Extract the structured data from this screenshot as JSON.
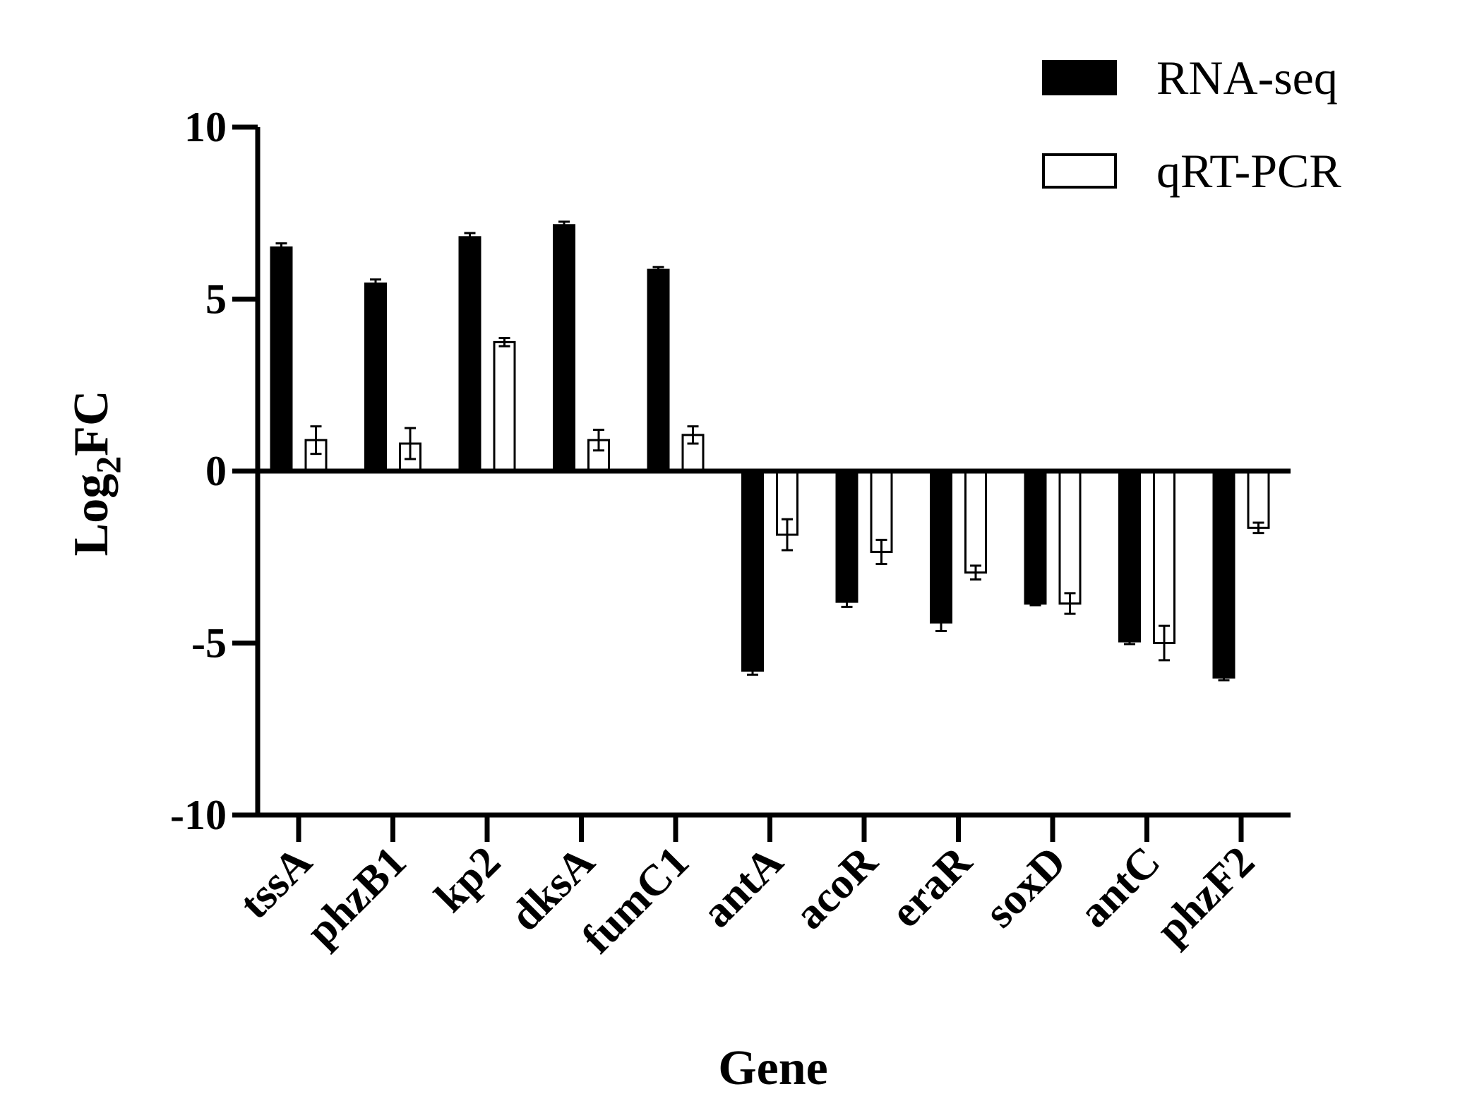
{
  "chart_data": {
    "type": "bar",
    "title": "",
    "xlabel": "Gene",
    "ylabel_main": "Log",
    "ylabel_sub": "2",
    "ylabel_tail": "FC",
    "ylim": [
      -10,
      10
    ],
    "yticks": [
      10,
      5,
      0,
      -5,
      -10
    ],
    "ytick_labels": [
      "10",
      "5",
      "0",
      "-5",
      "-10"
    ],
    "legend_position": "top-right",
    "categories": [
      "tssA",
      "phzB1",
      "kp2",
      "dksA",
      "fumC1",
      "antA",
      "acoR",
      "eraR",
      "soxD",
      "antC",
      "phzF2"
    ],
    "series": [
      {
        "name": "RNA-seq",
        "fill": "#000000",
        "stroke": "#000000",
        "values": [
          6.5,
          5.45,
          6.8,
          7.15,
          5.85,
          -5.8,
          -3.8,
          -4.4,
          -3.85,
          -4.95,
          -6.0
        ],
        "errors": [
          0.12,
          0.12,
          0.12,
          0.1,
          0.08,
          0.12,
          0.15,
          0.25,
          0.05,
          0.08,
          0.08
        ]
      },
      {
        "name": "qRT-PCR",
        "fill": "#ffffff",
        "stroke": "#000000",
        "values": [
          0.9,
          0.8,
          3.75,
          0.9,
          1.05,
          -1.85,
          -2.35,
          -2.95,
          -3.85,
          -5.0,
          -1.65
        ],
        "errors": [
          0.4,
          0.45,
          0.12,
          0.3,
          0.25,
          0.45,
          0.35,
          0.2,
          0.3,
          0.5,
          0.15
        ]
      }
    ]
  }
}
